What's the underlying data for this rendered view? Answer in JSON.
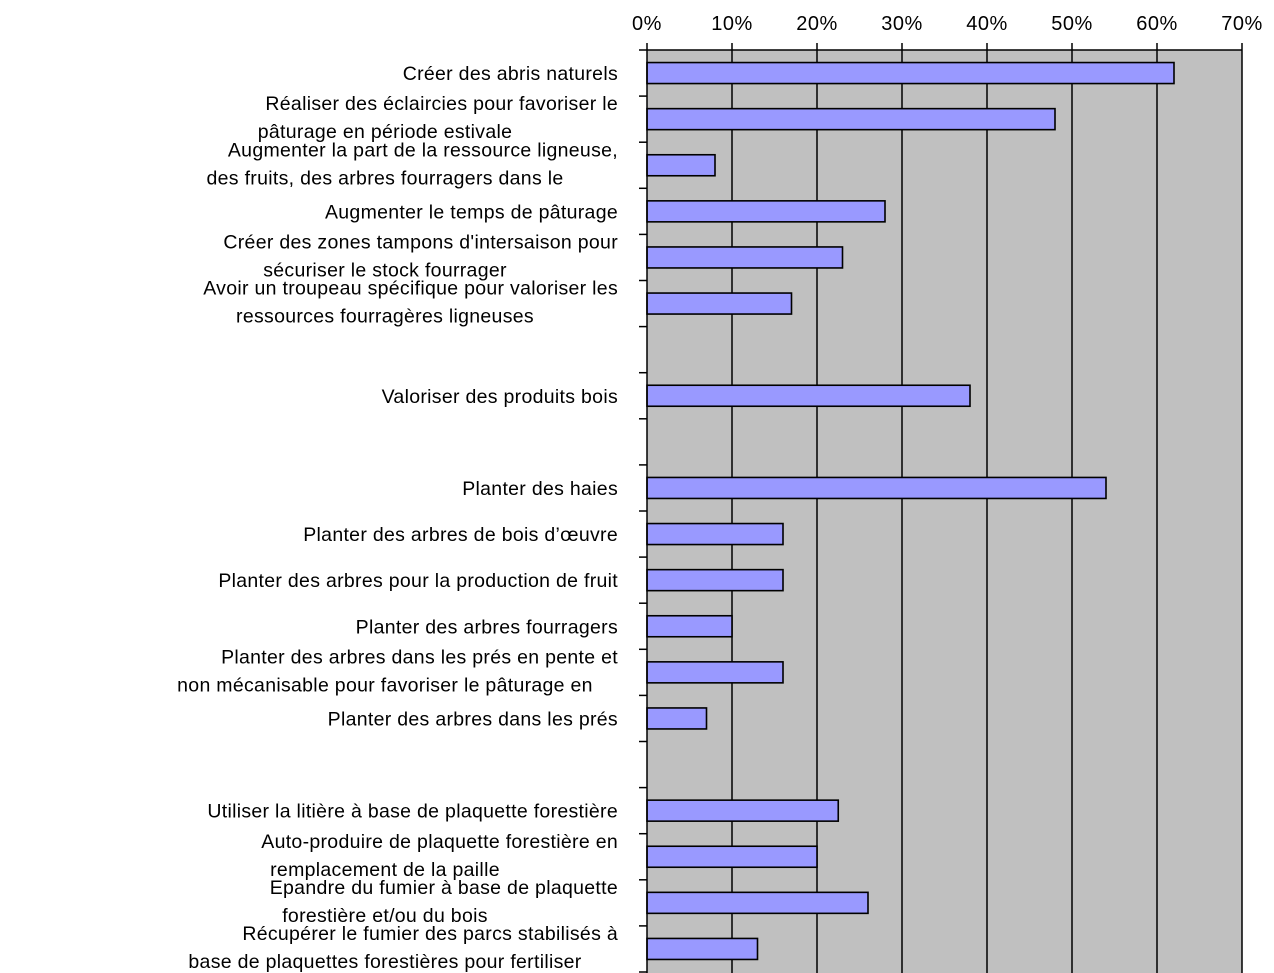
{
  "chart_data": {
    "type": "bar",
    "orientation": "horizontal",
    "xlim": [
      0,
      0.7
    ],
    "x_ticks": [
      "0%",
      "10%",
      "20%",
      "30%",
      "40%",
      "50%",
      "60%",
      "70%"
    ],
    "x_axis_position": "top",
    "grid": true,
    "plot_background": "#c0c0c0",
    "bar_color": "#9999ff",
    "categories": [
      {
        "label": [
          "Créer des abris naturels"
        ],
        "value": 0.62
      },
      {
        "label": [
          "Réaliser des éclaircies pour favoriser le",
          "pâturage en période estivale"
        ],
        "value": 0.48
      },
      {
        "label": [
          "Augmenter la part de la ressource ligneuse,",
          "des fruits, des  arbres fourragers dans le"
        ],
        "value": 0.08
      },
      {
        "label": [
          "Augmenter le temps de pâturage"
        ],
        "value": 0.28
      },
      {
        "label": [
          "Créer des zones tampons d'intersaison pour",
          "sécuriser le stock fourrager"
        ],
        "value": 0.23
      },
      {
        "label": [
          "Avoir un troupeau spécifique pour valoriser les",
          "ressources fourragères ligneuses"
        ],
        "value": 0.17
      },
      {
        "label": [],
        "value": null
      },
      {
        "label": [
          "Valoriser des produits bois"
        ],
        "value": 0.38
      },
      {
        "label": [],
        "value": null
      },
      {
        "label": [
          "Planter des haies"
        ],
        "value": 0.54
      },
      {
        "label": [
          "Planter des arbres de bois d’œuvre"
        ],
        "value": 0.16
      },
      {
        "label": [
          "Planter des arbres pour la production de fruit"
        ],
        "value": 0.16
      },
      {
        "label": [
          "Planter des arbres fourragers"
        ],
        "value": 0.1
      },
      {
        "label": [
          "Planter des arbres dans les prés en pente et",
          "non mécanisable pour favoriser le pâturage en"
        ],
        "value": 0.16
      },
      {
        "label": [
          "Planter des arbres dans les prés"
        ],
        "value": 0.07
      },
      {
        "label": [],
        "value": null
      },
      {
        "label": [
          "Utiliser la litière à base de plaquette forestière"
        ],
        "value": 0.225
      },
      {
        "label": [
          "Auto-produire de plaquette forestière en",
          "remplacement de la paille"
        ],
        "value": 0.2
      },
      {
        "label": [
          "Epandre du fumier à base de plaquette",
          "forestière et/ou du bois"
        ],
        "value": 0.26
      },
      {
        "label": [
          "Récupérer le fumier des parcs stabilisés à",
          "base de plaquettes forestières pour fertiliser"
        ],
        "value": 0.13
      }
    ]
  }
}
